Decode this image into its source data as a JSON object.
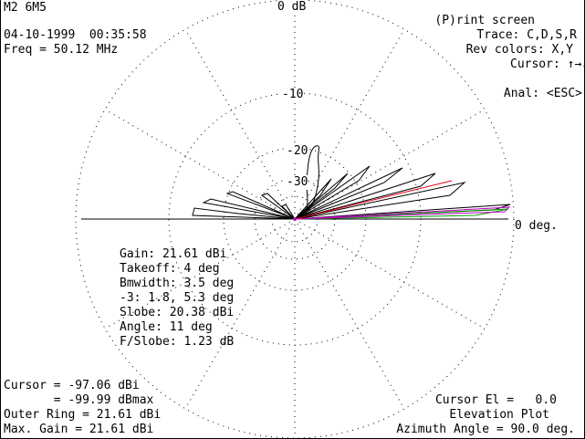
{
  "header": {
    "model": "M2 6M5",
    "datetime": "04-10-1999  00:35:58",
    "freq": "Freq = 50.12 MHz"
  },
  "commands": {
    "print": "(P)rint screen",
    "trace": "Trace: C,D,S,R",
    "rev_colors": "Rev colors: X,Y",
    "cursor": "Cursor:",
    "cursor_keys": "↑→↓←",
    "anal": "Anal: <ESC>"
  },
  "plot": {
    "ring_labels": [
      "0 dB",
      "-10",
      "-20",
      "-30"
    ],
    "horizon_label": "0 deg.",
    "colors": {
      "pattern": "#000000",
      "red_trace": "#e0001c",
      "green_trace": "#00a000",
      "magenta_trace": "#c000c0",
      "grid": "#000000"
    }
  },
  "stats": {
    "gain": "Gain: 21.61 dBi",
    "takeoff": "Takeoff: 4 deg",
    "bmwidth": "Bmwidth: 3.5 deg",
    "minus3": "-3: 1.8, 5.3 deg",
    "slobe": "Slobe: 20.38 dBi",
    "angle": "Angle: 11 deg",
    "fslobe": "F/Slobe: 1.23 dB"
  },
  "footer": {
    "cursor": "Cursor = -97.06 dBi",
    "cursor_max": "       = -99.99 dBmax",
    "outer_ring": "Outer Ring = 21.61 dBi",
    "max_gain": "Max. Gain = 21.61 dBi",
    "cursor_el": "Cursor El =   0.0",
    "plot_title": "Elevation Plot",
    "azimuth": "Azimuth Angle = 90.0 deg."
  }
}
